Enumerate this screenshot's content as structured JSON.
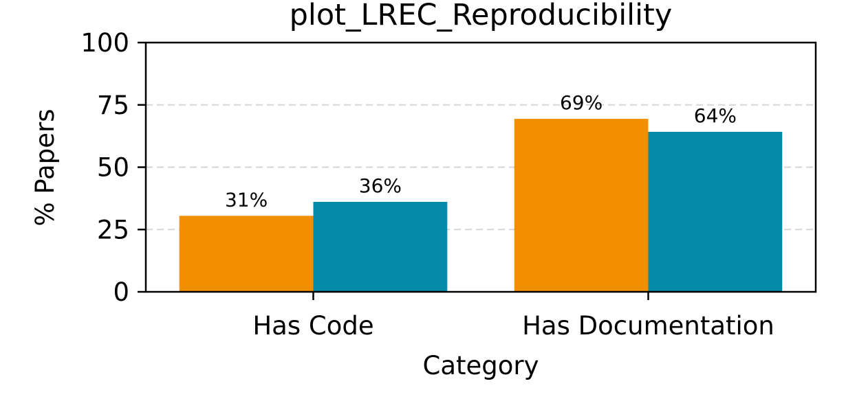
{
  "chart_data": {
    "type": "bar",
    "title": "plot_LREC_Reproducibility",
    "xlabel": "Category",
    "ylabel": "% Papers",
    "categories": [
      "Has Code",
      "Has Documentation"
    ],
    "series": [
      {
        "color": "#F18F01",
        "values": [
          30.5,
          69.4
        ]
      },
      {
        "color": "#048BA8",
        "values": [
          36.1,
          64.2
        ]
      }
    ],
    "data_labels": [
      [
        "31%",
        "69%"
      ],
      [
        "36%",
        "64%"
      ]
    ],
    "ylim": [
      0,
      100
    ],
    "yticks": [
      0,
      25,
      50,
      75,
      100
    ],
    "grid": "y-dashed",
    "legend": "none"
  }
}
